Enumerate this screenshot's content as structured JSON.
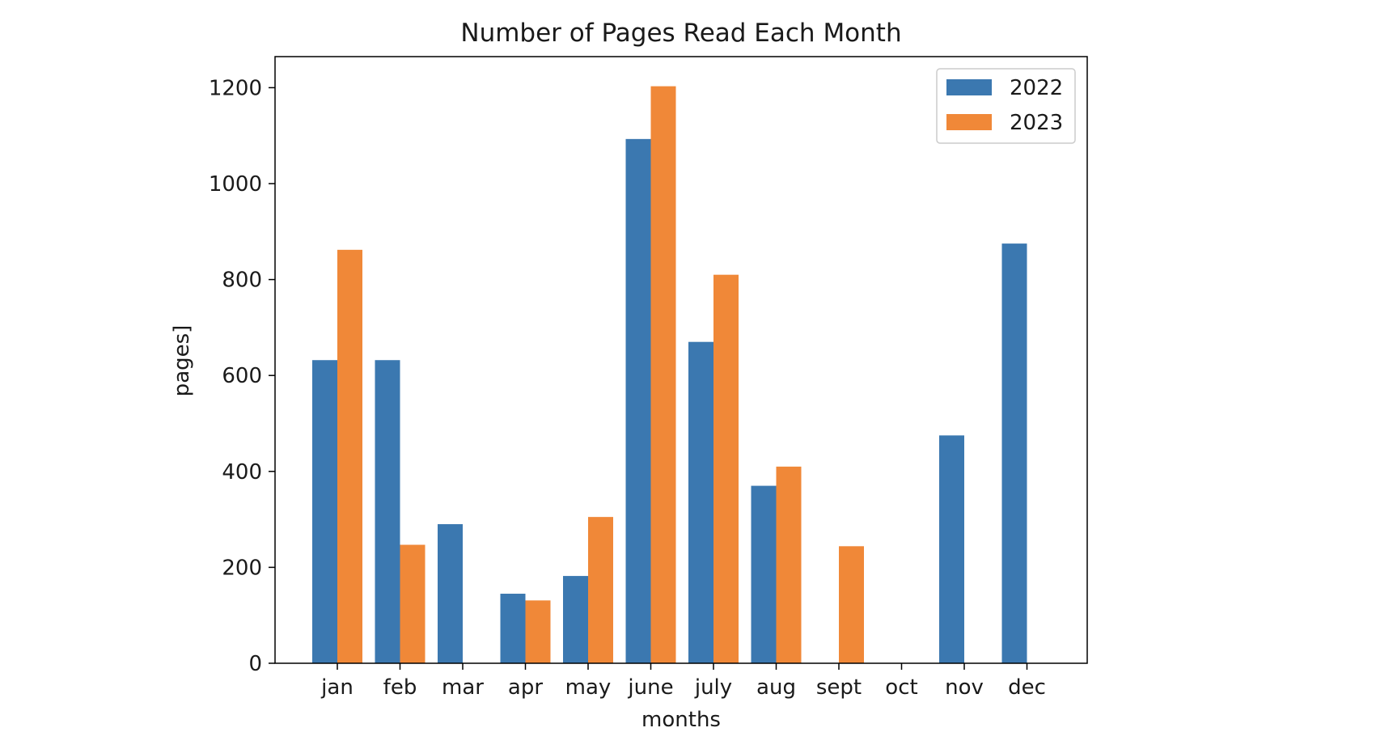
{
  "chart_data": {
    "type": "bar",
    "title": "Number of Pages Read Each Month",
    "xlabel": "months",
    "ylabel": "pages]",
    "categories": [
      "jan",
      "feb",
      "mar",
      "apr",
      "may",
      "june",
      "july",
      "aug",
      "sept",
      "oct",
      "nov",
      "dec"
    ],
    "series": [
      {
        "name": "2022",
        "color": "#3b78b0",
        "values": [
          632,
          632,
          290,
          145,
          182,
          1093,
          670,
          370,
          0,
          0,
          475,
          875
        ]
      },
      {
        "name": "2023",
        "color": "#f08838",
        "values": [
          862,
          247,
          0,
          131,
          305,
          1203,
          810,
          410,
          244,
          0,
          0,
          0
        ]
      }
    ],
    "ylim": [
      0,
      1265
    ],
    "yticks": [
      0,
      200,
      400,
      600,
      800,
      1000,
      1200
    ],
    "ytick_labels": [
      "0",
      "200",
      "400",
      "600",
      "800",
      "1000",
      "1200"
    ],
    "legend": "upper right",
    "grid": false
  }
}
